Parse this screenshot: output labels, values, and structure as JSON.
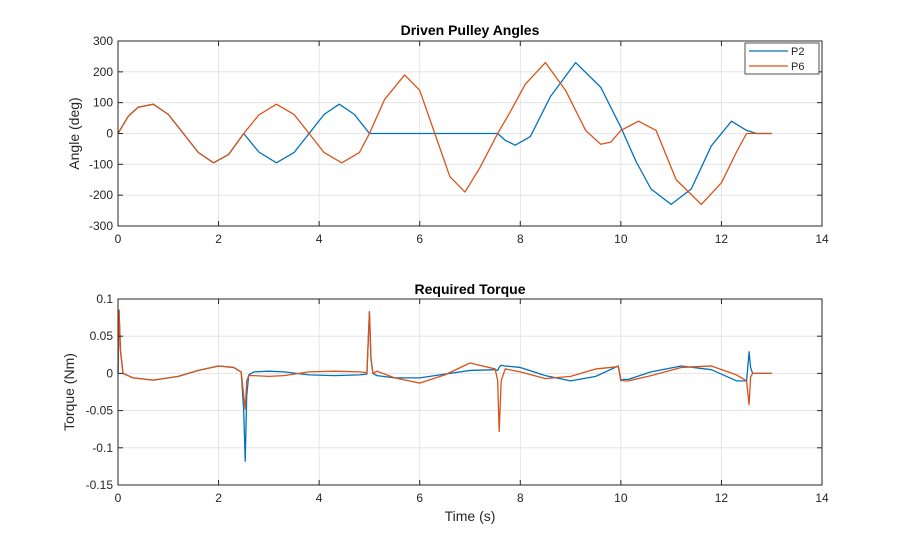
{
  "colors": {
    "P2": "#0072BD",
    "P6": "#D95319",
    "grid": "#dfdfdf",
    "axis": "#262626"
  },
  "chart_data": [
    {
      "type": "line",
      "title": "Driven Pulley Angles",
      "xlabel": "",
      "ylabel": "Angle (deg)",
      "xlim": [
        0,
        14
      ],
      "ylim": [
        -300,
        300
      ],
      "xticks": [
        0,
        2,
        4,
        6,
        8,
        10,
        12,
        14
      ],
      "yticks": [
        -300,
        -200,
        -100,
        0,
        100,
        200,
        300
      ],
      "xtick_labels": [
        "0",
        "2",
        "4",
        "6",
        "8",
        "10",
        "12",
        "14"
      ],
      "ytick_labels": [
        "-300",
        "-200",
        "-100",
        "0",
        "100",
        "200",
        "300"
      ],
      "grid": true,
      "legend_position": "top-right",
      "series": [
        {
          "name": "P2",
          "color": "#0072BD",
          "x": [
            0,
            0.2,
            0.4,
            0.7,
            1.0,
            1.3,
            1.6,
            1.9,
            2.2,
            2.5,
            2.8,
            3.15,
            3.5,
            3.8,
            4.1,
            4.4,
            4.7,
            5.0,
            5.3,
            5.7,
            6.2,
            6.9,
            7.55,
            7.7,
            7.9,
            8.2,
            8.6,
            9.1,
            9.6,
            10.0,
            10.3,
            10.6,
            11.0,
            11.4,
            11.8,
            12.2,
            12.5,
            12.7,
            13.0
          ],
          "y": [
            0,
            55,
            85,
            95,
            62,
            0,
            -62,
            -95,
            -68,
            0,
            -60,
            -95,
            -62,
            0,
            62,
            95,
            62,
            0,
            0,
            0,
            0,
            0,
            0,
            -22,
            -38,
            -10,
            120,
            230,
            150,
            20,
            -90,
            -180,
            -230,
            -180,
            -40,
            40,
            10,
            0,
            0
          ]
        },
        {
          "name": "P6",
          "color": "#D95319",
          "x": [
            0,
            0.2,
            0.4,
            0.7,
            1.0,
            1.3,
            1.6,
            1.9,
            2.2,
            2.5,
            2.8,
            3.15,
            3.5,
            3.8,
            4.1,
            4.45,
            4.8,
            5.0,
            5.3,
            5.7,
            6.0,
            6.3,
            6.6,
            6.9,
            7.2,
            7.55,
            7.8,
            8.1,
            8.5,
            8.9,
            9.3,
            9.6,
            9.8,
            10.0,
            10.35,
            10.7,
            11.1,
            11.6,
            12.0,
            12.3,
            12.5,
            12.7,
            13.0
          ],
          "y": [
            0,
            55,
            85,
            95,
            62,
            0,
            -62,
            -95,
            -68,
            0,
            60,
            95,
            62,
            0,
            -62,
            -95,
            -62,
            0,
            110,
            190,
            140,
            0,
            -140,
            -190,
            -110,
            0,
            70,
            160,
            230,
            140,
            10,
            -35,
            -28,
            10,
            40,
            10,
            -150,
            -230,
            -160,
            -60,
            0,
            0,
            0
          ]
        }
      ]
    },
    {
      "type": "line",
      "title": "Required Torque",
      "xlabel": "Time (s)",
      "ylabel": "Torque (Nm)",
      "xlim": [
        0,
        14
      ],
      "ylim": [
        -0.15,
        0.1
      ],
      "xticks": [
        0,
        2,
        4,
        6,
        8,
        10,
        12,
        14
      ],
      "yticks": [
        -0.15,
        -0.1,
        -0.05,
        0,
        0.05,
        0.1
      ],
      "xtick_labels": [
        "0",
        "2",
        "4",
        "6",
        "8",
        "10",
        "12",
        "14"
      ],
      "ytick_labels": [
        "-0.15",
        "-0.1",
        "-0.05",
        "0",
        "0.05",
        "0.1"
      ],
      "grid": true,
      "series": [
        {
          "name": "P2",
          "color": "#0072BD",
          "x": [
            0,
            0.02,
            0.05,
            0.1,
            0.3,
            0.7,
            1.2,
            1.6,
            2.0,
            2.3,
            2.45,
            2.5,
            2.53,
            2.56,
            2.6,
            2.7,
            3.0,
            3.3,
            3.8,
            4.3,
            4.8,
            4.95,
            5.0,
            5.03,
            5.07,
            5.15,
            5.5,
            6.0,
            6.5,
            7.0,
            7.5,
            7.55,
            7.58,
            7.62,
            7.7,
            8.0,
            8.5,
            9.0,
            9.5,
            9.95,
            10.0,
            10.05,
            10.15,
            10.6,
            11.2,
            11.8,
            12.3,
            12.5,
            12.55,
            12.58,
            12.62,
            12.7,
            13.0
          ],
          "y": [
            0,
            0.085,
            0.03,
            0,
            -0.006,
            -0.009,
            -0.004,
            0.004,
            0.01,
            0.008,
            0.002,
            -0.05,
            -0.118,
            -0.03,
            -0.002,
            0.002,
            0.003,
            0.002,
            -0.002,
            -0.003,
            -0.002,
            -0.001,
            0.083,
            0.02,
            0,
            -0.003,
            -0.006,
            -0.006,
            -0.001,
            0.004,
            0.005,
            0.004,
            0.008,
            0.011,
            0.01,
            0.008,
            -0.003,
            -0.01,
            -0.004,
            0.01,
            -0.01,
            -0.008,
            -0.008,
            0.002,
            0.01,
            0.005,
            -0.01,
            -0.01,
            0.029,
            0.008,
            0,
            0,
            0
          ]
        },
        {
          "name": "P6",
          "color": "#D95319",
          "x": [
            0,
            0.02,
            0.05,
            0.1,
            0.3,
            0.7,
            1.2,
            1.6,
            2.0,
            2.3,
            2.45,
            2.5,
            2.53,
            2.56,
            2.6,
            2.7,
            3.0,
            3.3,
            3.8,
            4.3,
            4.8,
            4.95,
            5.0,
            5.03,
            5.07,
            5.15,
            5.5,
            6.0,
            6.5,
            7.0,
            7.5,
            7.55,
            7.58,
            7.62,
            7.7,
            8.0,
            8.5,
            9.0,
            9.5,
            9.95,
            10.0,
            10.05,
            10.15,
            10.6,
            11.2,
            11.8,
            12.3,
            12.5,
            12.55,
            12.58,
            12.62,
            12.7,
            13.0
          ],
          "y": [
            0,
            0.085,
            0.03,
            0,
            -0.006,
            -0.009,
            -0.004,
            0.004,
            0.01,
            0.008,
            0.002,
            -0.03,
            -0.048,
            -0.01,
            -0.003,
            -0.003,
            -0.004,
            -0.003,
            0.002,
            0.003,
            0.002,
            0.001,
            0.083,
            0.02,
            0,
            0.003,
            -0.006,
            -0.013,
            -0.002,
            0.014,
            0.006,
            -0.01,
            -0.078,
            -0.01,
            0.006,
            0.002,
            -0.007,
            -0.004,
            0.006,
            0.009,
            -0.008,
            -0.01,
            -0.01,
            -0.003,
            0.008,
            0.01,
            -0.002,
            -0.01,
            -0.042,
            -0.005,
            0,
            0,
            0
          ]
        }
      ]
    }
  ]
}
